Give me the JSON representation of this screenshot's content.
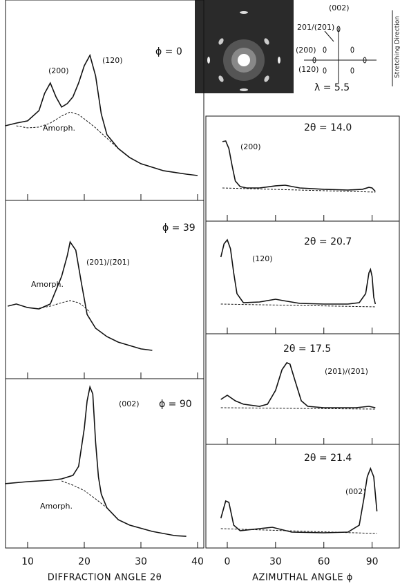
{
  "chart_data": [
    {
      "type": "line",
      "title": "ϕ = 0",
      "annotations": [
        "(200)",
        "(120)",
        "Amorph."
      ],
      "xlim": [
        6.1,
        41.1
      ],
      "ylim": [
        0,
        100
      ],
      "xticks": [
        10,
        20,
        30,
        40
      ],
      "series": [
        {
          "color": "#111",
          "style": "solid",
          "x": [
            6,
            8,
            10,
            12,
            13,
            14,
            15,
            16,
            17,
            18,
            19,
            20,
            21,
            22,
            23,
            24,
            26,
            28,
            30,
            34,
            38,
            40
          ],
          "values": [
            37.2,
            38.6,
            39.7,
            44.8,
            53.4,
            58.6,
            51.7,
            46.6,
            48.3,
            51.7,
            58.6,
            67.2,
            72.4,
            62.1,
            43.1,
            32.8,
            25.9,
            21.4,
            18.3,
            14.8,
            13.1,
            12.4
          ]
        },
        {
          "color": "#111",
          "style": "dashed",
          "x": [
            8,
            10,
            12,
            14,
            16,
            17.5,
            19,
            20,
            22,
            24,
            26
          ],
          "values": [
            37.2,
            36.2,
            36.6,
            38.6,
            42.1,
            44.1,
            42.8,
            40.7,
            36.2,
            31.0,
            25.9
          ]
        }
      ]
    },
    {
      "type": "line",
      "title": "ϕ = 39",
      "annotations": [
        "(201)/(2̄01)",
        "Amorph."
      ],
      "xlim": [
        6.1,
        41.1
      ],
      "ylim": [
        0,
        100
      ],
      "xticks": [
        10,
        20,
        30,
        40
      ],
      "series": [
        {
          "color": "#111",
          "style": "solid",
          "x": [
            6.5,
            8,
            10,
            12,
            14,
            16,
            17,
            17.5,
            18.5,
            19.5,
            20.5,
            22,
            24,
            26,
            28,
            30,
            32
          ],
          "values": [
            40.7,
            41.9,
            39.9,
            39.1,
            41.9,
            57.4,
            69.0,
            76.7,
            72.1,
            53.5,
            36.0,
            28.3,
            23.6,
            20.5,
            18.6,
            16.7,
            15.9
          ]
        },
        {
          "color": "#111",
          "style": "dashed",
          "x": [
            12,
            14,
            16,
            17.5,
            19,
            20,
            21
          ],
          "values": [
            39.5,
            40.7,
            42.6,
            43.8,
            42.6,
            40.3,
            37.2
          ]
        }
      ]
    },
    {
      "type": "line",
      "title": "ϕ = 90",
      "annotations": [
        "(002)",
        "Amorph."
      ],
      "xlim": [
        6.1,
        41.1
      ],
      "ylim": [
        0,
        100
      ],
      "xticks": [
        10,
        20,
        30,
        40
      ],
      "xlabel": "DIFFRACTION ANGLE 2θ",
      "series": [
        {
          "color": "#111",
          "style": "solid",
          "x": [
            6,
            10,
            14,
            16,
            18,
            19,
            20,
            20.5,
            21,
            21.5,
            22,
            22.5,
            23,
            24,
            26,
            28,
            32,
            36,
            38
          ],
          "values": [
            38.0,
            39.2,
            40.0,
            40.8,
            42.9,
            48.2,
            70.6,
            86.9,
            95.1,
            91.0,
            62.4,
            42.0,
            31.8,
            23.7,
            16.7,
            13.5,
            9.8,
            7.3,
            6.9
          ]
        },
        {
          "color": "#111",
          "style": "dashed",
          "x": [
            16,
            18,
            20,
            22,
            24
          ],
          "values": [
            39.6,
            37.1,
            33.9,
            29.0,
            23.7
          ]
        }
      ]
    },
    {
      "type": "line",
      "title": "2θ = 14.0",
      "annotations": [
        "(200)"
      ],
      "xlim": [
        -13.3,
        106.9
      ],
      "ylim": [
        0,
        100
      ],
      "xticks": [
        0,
        30,
        60,
        90
      ],
      "series": [
        {
          "color": "#111",
          "style": "solid",
          "x": [
            -3,
            -1,
            1,
            3,
            5,
            8,
            12,
            20,
            30,
            36,
            45,
            60,
            75,
            84,
            88,
            90,
            92
          ],
          "values": [
            75.7,
            76.3,
            69.1,
            52.6,
            38.2,
            32.9,
            31.6,
            31.6,
            33.6,
            34.2,
            31.6,
            30.3,
            29.6,
            30.3,
            32.2,
            31.6,
            28.3
          ]
        },
        {
          "color": "#111",
          "style": "dashed",
          "x": [
            -3,
            92
          ],
          "values": [
            31.6,
            27.6
          ]
        }
      ]
    },
    {
      "type": "line",
      "title": "2θ = 20.7",
      "annotations": [
        "(120)"
      ],
      "xlim": [
        -13.3,
        106.9
      ],
      "ylim": [
        0,
        100
      ],
      "xticks": [
        0,
        30,
        60,
        90
      ],
      "series": [
        {
          "color": "#111",
          "style": "solid",
          "x": [
            -4,
            -2,
            0,
            2,
            4,
            6,
            10,
            20,
            30,
            35,
            45,
            60,
            75,
            82,
            86,
            88,
            89,
            90,
            91,
            92
          ],
          "values": [
            68.1,
            79.8,
            83.4,
            75.5,
            54.0,
            35.6,
            27.6,
            28.2,
            30.7,
            29.4,
            27.0,
            26.4,
            26.4,
            27.6,
            35.6,
            54.0,
            57.1,
            50.9,
            32.5,
            26.4
          ]
        },
        {
          "color": "#111",
          "style": "dashed",
          "x": [
            -4,
            92
          ],
          "values": [
            26.4,
            23.9
          ]
        }
      ]
    },
    {
      "type": "line",
      "title": "2θ = 17.5",
      "annotations": [
        "(201)/(2̄01)"
      ],
      "xlim": [
        -13.3,
        106.9
      ],
      "ylim": [
        0,
        100
      ],
      "xticks": [
        0,
        30,
        60,
        90
      ],
      "series": [
        {
          "color": "#111",
          "style": "solid",
          "x": [
            -4,
            0,
            5,
            10,
            20,
            25,
            30,
            34,
            37,
            39,
            42,
            46,
            50,
            60,
            80,
            88,
            92
          ],
          "values": [
            40.6,
            44.4,
            39.4,
            36.3,
            34.4,
            36.3,
            48.8,
            67.5,
            73.8,
            72.5,
            58.1,
            39.4,
            34.4,
            33.1,
            33.1,
            34.4,
            33.1
          ]
        },
        {
          "color": "#111",
          "style": "dashed",
          "x": [
            -4,
            92
          ],
          "values": [
            33.1,
            31.9
          ]
        }
      ]
    },
    {
      "type": "line",
      "title": "2θ = 21.4",
      "annotations": [
        "(002)"
      ],
      "xlim": [
        -13.3,
        106.9
      ],
      "ylim": [
        0,
        100
      ],
      "xticks": [
        0,
        30,
        60,
        90
      ],
      "xlabel": "AZIMUTHAL ANGLE ϕ",
      "series": [
        {
          "color": "#111",
          "style": "solid",
          "x": [
            -4,
            -1,
            1,
            4,
            8,
            20,
            28,
            40,
            60,
            75,
            82,
            85,
            87,
            89,
            91,
            93
          ],
          "values": [
            28.7,
            45.3,
            44.0,
            22.0,
            16.7,
            18.7,
            20.0,
            15.3,
            14.7,
            15.3,
            22.0,
            48.7,
            68.7,
            76.7,
            68.7,
            35.3
          ]
        },
        {
          "color": "#111",
          "style": "dashed",
          "x": [
            -4,
            93
          ],
          "values": [
            18.7,
            14.0
          ]
        }
      ]
    }
  ],
  "inset": {
    "labels": [
      "201/(2̄01)",
      "(002)",
      "(200)",
      "(120)"
    ],
    "lambda": "λ = 5.5",
    "direction": "Stretching Direction"
  }
}
